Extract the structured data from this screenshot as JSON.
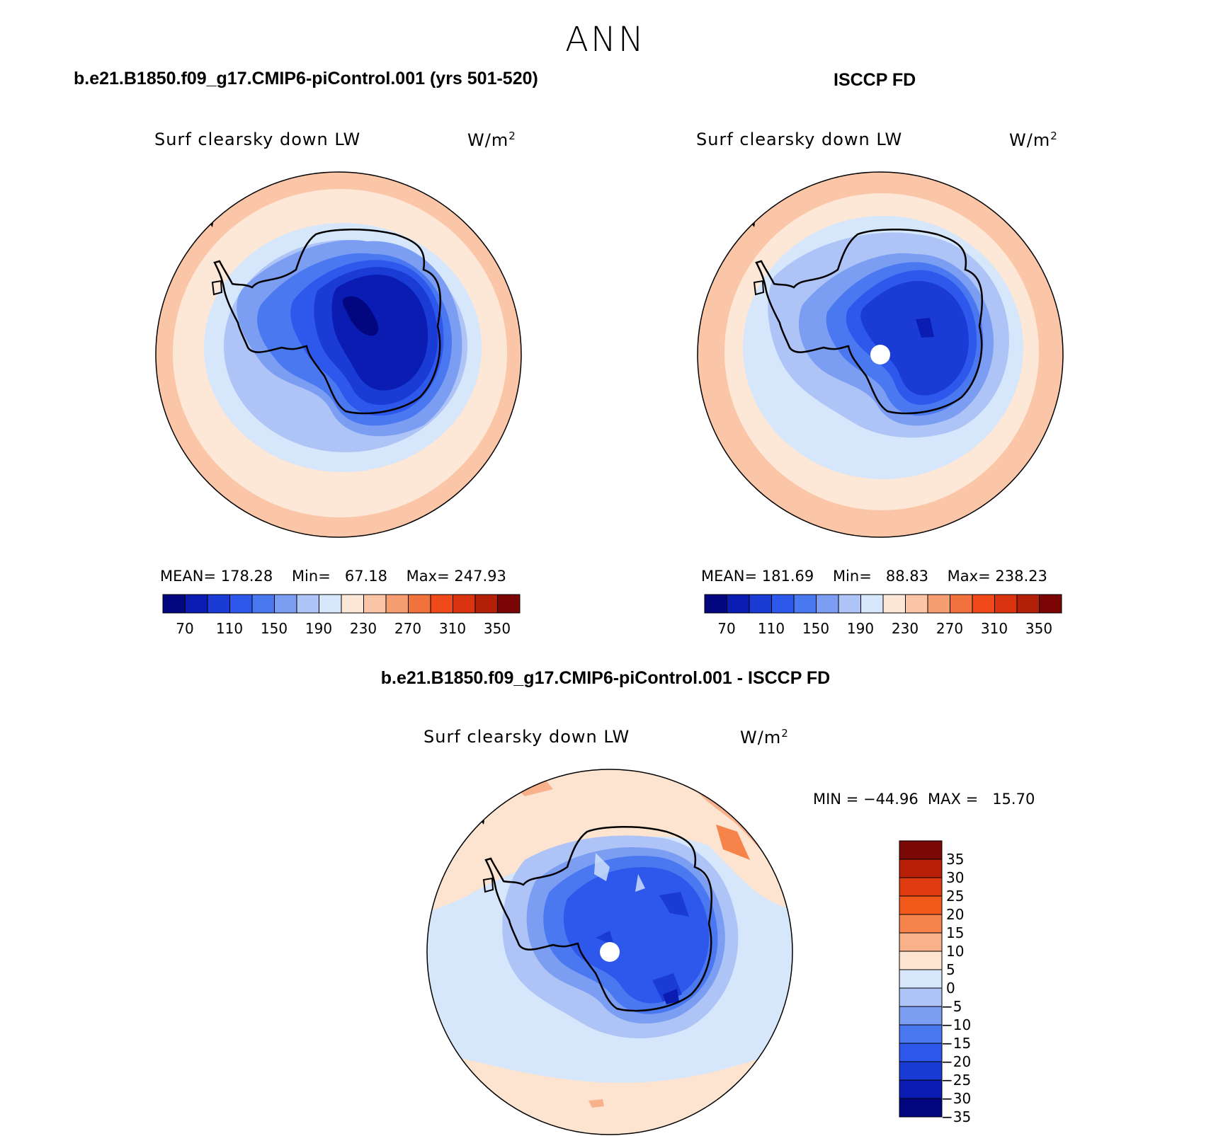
{
  "figure_title": "ANN",
  "panels": [
    {
      "case_title": "b.e21.B1850.f09_g17.CMIP6-piControl.001 (yrs 501-520)",
      "variable": "Surf clearsky down LW",
      "units": "W/m",
      "units_sup": "2",
      "stats": {
        "mean_label": "MEAN=",
        "mean": "178.28",
        "min_label": "Min=",
        "min": "67.18",
        "max_label": "Max=",
        "max": "247.93"
      }
    },
    {
      "case_title": "ISCCP FD",
      "variable": "Surf clearsky down LW",
      "units": "W/m",
      "units_sup": "2",
      "stats": {
        "mean_label": "MEAN=",
        "mean": "181.69",
        "min_label": "Min=",
        "min": "88.83",
        "max_label": "Max=",
        "max": "238.23"
      }
    },
    {
      "case_title": "b.e21.B1850.f09_g17.CMIP6-piControl.001 - ISCCP FD",
      "variable": "Surf clearsky down LW",
      "units": "W/m",
      "units_sup": "2",
      "stats_text": "MIN = −44.96  MAX =   15.70"
    }
  ],
  "colorbar_main": {
    "colors": [
      "#02077f",
      "#0a1cb1",
      "#1a3bd6",
      "#2e58ec",
      "#4a78f0",
      "#7b9df2",
      "#aec3f6",
      "#d6e6fb",
      "#fde7d6",
      "#fbc6a8",
      "#f69d72",
      "#f2723e",
      "#f04a1a",
      "#d9330f",
      "#b41f07",
      "#7b0505"
    ],
    "tick_labels": [
      "70",
      "110",
      "150",
      "190",
      "230",
      "270",
      "310",
      "350"
    ]
  },
  "colorbar_diff": {
    "colors": [
      "#7a0905",
      "#b81f07",
      "#de3c10",
      "#f25a1c",
      "#f6844a",
      "#f9b18c",
      "#fde4d0",
      "#d6e6fb",
      "#aec3f6",
      "#7b9df2",
      "#4a78f0",
      "#2e58ec",
      "#1a3bd6",
      "#0a1cb1",
      "#02077f"
    ],
    "tick_labels": [
      "35",
      "30",
      "25",
      "20",
      "15",
      "10",
      "5",
      "0",
      "−5",
      "−10",
      "−15",
      "−20",
      "−25",
      "−30",
      "−35"
    ]
  },
  "chart_data": [
    {
      "type": "map",
      "title": "b.e21.B1850.f09_g17.CMIP6-piControl.001 (yrs 501-520)",
      "variable": "Surf clearsky down LW",
      "units": "W/m2",
      "projection": "south polar stereographic",
      "mean": 178.28,
      "min": 67.18,
      "max": 247.93,
      "contour_levels": [
        70,
        90,
        110,
        130,
        150,
        170,
        190,
        210,
        230,
        250,
        270,
        290,
        310,
        330,
        350
      ],
      "ring_levels_outer_to_pole": [
        240,
        230,
        215,
        195,
        175,
        150,
        130,
        110,
        90,
        70
      ]
    },
    {
      "type": "map",
      "title": "ISCCP FD",
      "variable": "Surf clearsky down LW",
      "units": "W/m2",
      "projection": "south polar stereographic",
      "mean": 181.69,
      "min": 88.83,
      "max": 238.23,
      "contour_levels": [
        70,
        90,
        110,
        130,
        150,
        170,
        190,
        210,
        230,
        250,
        270,
        290,
        310,
        330,
        350
      ],
      "ring_levels_outer_to_pole": [
        235,
        225,
        215,
        195,
        175,
        150,
        130,
        110,
        95
      ]
    },
    {
      "type": "map",
      "title": "b.e21.B1850.f09_g17.CMIP6-piControl.001 - ISCCP FD",
      "variable": "Surf clearsky down LW",
      "units": "W/m2",
      "projection": "south polar stereographic",
      "min": -44.96,
      "max": 15.7,
      "contour_levels": [
        -35,
        -30,
        -25,
        -20,
        -15,
        -10,
        -5,
        0,
        5,
        10,
        15,
        20,
        25,
        30,
        35
      ]
    }
  ]
}
